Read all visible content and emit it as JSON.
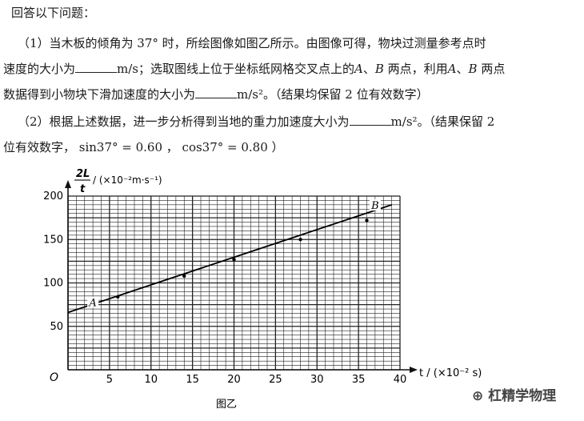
{
  "question": {
    "intro": "回答以下问题：",
    "p1a": "（1）当木板的倾角为 37°  时，所绘图像如图乙所示。由图像可得，物块过测量参考点时",
    "p1b_pre": "速度的大小为",
    "p1b_unit": "m/s；选取图线上位于坐标纸网格交叉点上的",
    "p1b_A": "A",
    "p1b_sep": "、",
    "p1b_B": "B",
    "p1b_mid": " 两点，利用",
    "p1b_A2": "A",
    "p1b_sep2": "、",
    "p1b_B2": "B",
    "p1b_end": " 两点",
    "p1c_pre": "数据得到小物块下滑加速度的大小为",
    "p1c_unit": "m/s²。（结果均保留 2 位有效数字）",
    "p2a_pre": "（2）根据上述数据，进一步分析得到当地的重力加速度大小为",
    "p2a_unit": "m/s²。（结果保留 2",
    "p2b": "位有效数字，  sin37° = 0.60 ，  cos37° = 0.80 ）"
  },
  "chart_data": {
    "type": "scatter",
    "title": "",
    "ylabel_num": "2L",
    "ylabel_den": "t",
    "ylabel_unit": "/ (×10⁻²m·s⁻¹)",
    "xlabel": "t / (×10⁻² s)",
    "xlim": [
      0,
      40
    ],
    "ylim": [
      0,
      200
    ],
    "xticks": [
      5,
      10,
      15,
      20,
      25,
      30,
      35,
      40
    ],
    "yticks": [
      50,
      100,
      150,
      200
    ],
    "origin_label": "O",
    "grid": true,
    "points": [
      [
        6,
        84
      ],
      [
        14,
        108
      ],
      [
        20,
        127
      ],
      [
        28,
        150
      ],
      [
        36,
        172
      ]
    ],
    "line": [
      [
        0,
        66
      ],
      [
        39,
        190
      ]
    ],
    "labels": [
      {
        "text": "A",
        "x": 3,
        "y": 75
      },
      {
        "text": "B",
        "x": 37,
        "y": 187
      }
    ],
    "caption": "图乙"
  },
  "watermark": "杠精学物理"
}
